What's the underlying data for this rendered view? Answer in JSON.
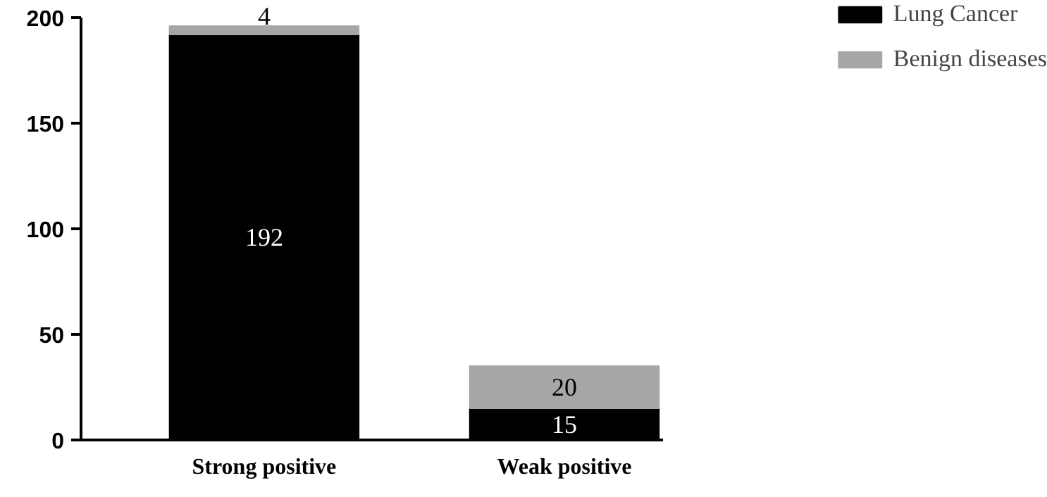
{
  "chart_data": {
    "type": "bar",
    "stacked": true,
    "categories": [
      "Strong positive",
      "Weak positive"
    ],
    "series": [
      {
        "name": "Lung Cancer",
        "color": "#000000",
        "values": [
          192,
          15
        ]
      },
      {
        "name": "Benign diseases",
        "color": "#a6a6a6",
        "values": [
          4,
          20
        ]
      }
    ],
    "ylim": [
      0,
      200
    ],
    "yticks": [
      0,
      50,
      100,
      150,
      200
    ],
    "data_labels": true,
    "legend": "top right",
    "grid": false
  }
}
